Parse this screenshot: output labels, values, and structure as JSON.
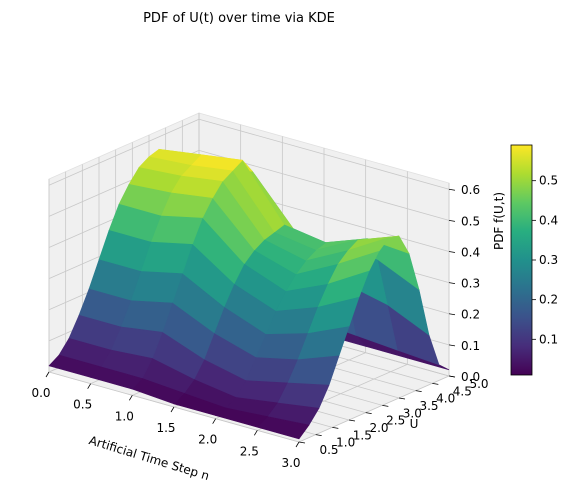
{
  "chart_data": {
    "type": "surface3d",
    "title": "PDF of U(t) over time via KDE",
    "xlabel": "Artificial Time Step n",
    "ylabel": "U",
    "zlabel": "PDF f(U,t)",
    "xlim": [
      0,
      3
    ],
    "ylim": [
      0.5,
      5
    ],
    "zlim": [
      0,
      0.62
    ],
    "x_ticks": [
      "0.0",
      "0.5",
      "1.0",
      "1.5",
      "2.0",
      "2.5",
      "3.0"
    ],
    "y_ticks": [
      "0.5",
      "1.0",
      "1.5",
      "2.0",
      "2.5",
      "3.0",
      "3.5",
      "4.0",
      "4.5",
      "5.0"
    ],
    "z_ticks": [
      "0.0",
      "0.1",
      "0.2",
      "0.3",
      "0.4",
      "0.5",
      "0.6"
    ],
    "colormap": "viridis",
    "colorbar": {
      "range": [
        0.01,
        0.59
      ],
      "ticks": [
        "0.1",
        "0.2",
        "0.3",
        "0.4",
        "0.5"
      ]
    },
    "grid": true,
    "x": [
      0,
      0.5,
      1,
      1.5,
      2,
      2.5,
      3
    ],
    "u": [
      0.5,
      0.8,
      1.1,
      1.4,
      1.7,
      2.0,
      2.3,
      2.6,
      2.9,
      3.2,
      3.5,
      3.8,
      4.1,
      4.4,
      4.7,
      5.0
    ],
    "z": [
      [
        0.02,
        0.04,
        0.08,
        0.14,
        0.21,
        0.29,
        0.37,
        0.44,
        0.49,
        0.53,
        0.55,
        0.56,
        0.5,
        0.3,
        0.08,
        0.02
      ],
      [
        0.02,
        0.04,
        0.08,
        0.14,
        0.21,
        0.29,
        0.37,
        0.44,
        0.5,
        0.54,
        0.56,
        0.58,
        0.52,
        0.32,
        0.09,
        0.02
      ],
      [
        0.02,
        0.04,
        0.09,
        0.16,
        0.24,
        0.32,
        0.4,
        0.47,
        0.52,
        0.56,
        0.58,
        0.6,
        0.55,
        0.36,
        0.1,
        0.02
      ],
      [
        0.01,
        0.03,
        0.06,
        0.11,
        0.18,
        0.25,
        0.31,
        0.36,
        0.39,
        0.41,
        0.42,
        0.43,
        0.4,
        0.27,
        0.08,
        0.02
      ],
      [
        0.01,
        0.02,
        0.04,
        0.08,
        0.14,
        0.2,
        0.26,
        0.31,
        0.35,
        0.38,
        0.4,
        0.41,
        0.38,
        0.25,
        0.07,
        0.02
      ],
      [
        0.01,
        0.03,
        0.06,
        0.11,
        0.17,
        0.24,
        0.31,
        0.37,
        0.42,
        0.45,
        0.47,
        0.46,
        0.38,
        0.22,
        0.06,
        0.02
      ],
      [
        0.01,
        0.04,
        0.08,
        0.14,
        0.22,
        0.3,
        0.38,
        0.45,
        0.5,
        0.53,
        0.52,
        0.45,
        0.32,
        0.16,
        0.05,
        0.02
      ]
    ]
  }
}
